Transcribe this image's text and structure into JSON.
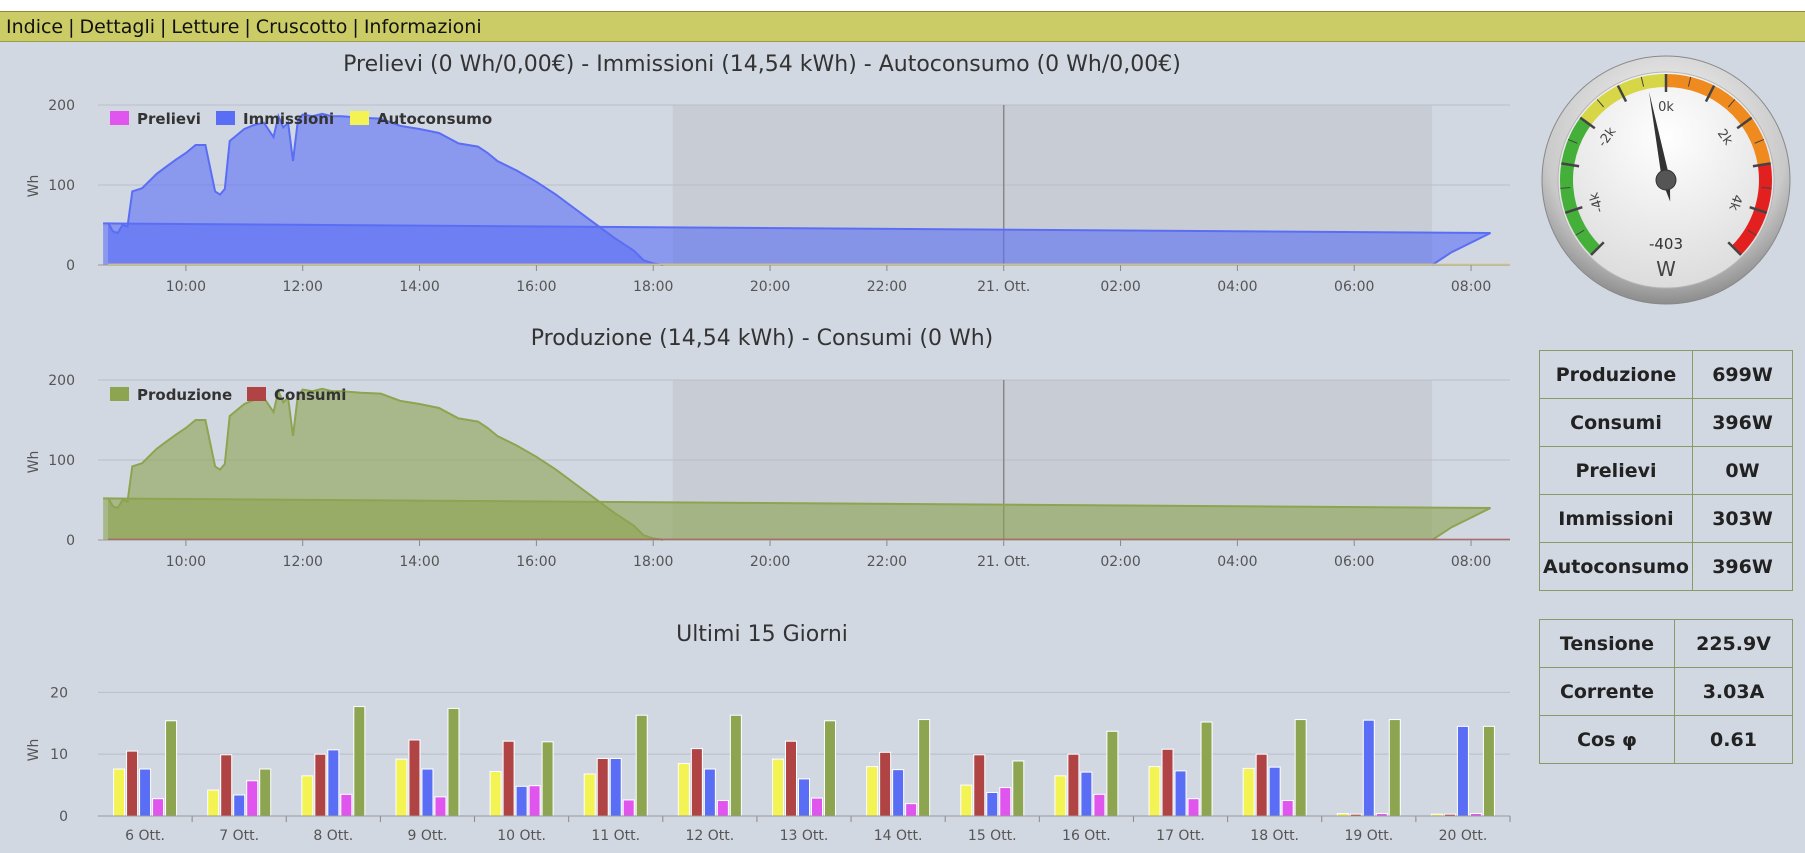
{
  "menu": [
    "Indice",
    "Dettagli",
    "Letture",
    "Cruscotto",
    "Informazioni"
  ],
  "chart_data": [
    {
      "type": "area",
      "title": "Prelievi (0 Wh/0,00€) - Immissioni (14,54 kWh) - Autoconsumo (0 Wh/0,00€)",
      "ylabel": "Wh",
      "ylim": [
        0,
        200
      ],
      "yticks": [
        0,
        100,
        200
      ],
      "xlim": [
        "20 Ott. 08:40",
        "21 Ott. 08:40"
      ],
      "xticks": [
        "10:00",
        "12:00",
        "14:00",
        "16:00",
        "18:00",
        "20:00",
        "22:00",
        "21. Ott.",
        "02:00",
        "04:00",
        "06:00",
        "08:00"
      ],
      "night_band": [
        "18:20",
        "07:20"
      ],
      "series": [
        {
          "name": "Prelievi",
          "color": "#e055ee",
          "values": []
        },
        {
          "name": "Immissioni",
          "color": "#5a6ef5",
          "x": [
            "08:40",
            "08:45",
            "08:50",
            "08:55",
            "09:00",
            "09:05",
            "09:10",
            "09:15",
            "09:20",
            "09:30",
            "09:40",
            "09:50",
            "10:00",
            "10:10",
            "10:20",
            "10:30",
            "10:35",
            "10:40",
            "10:45",
            "10:50",
            "10:55",
            "11:00",
            "11:10",
            "11:20",
            "11:30",
            "11:35",
            "11:40",
            "11:45",
            "11:50",
            "11:55",
            "12:00",
            "12:10",
            "12:20",
            "12:30",
            "12:40",
            "13:00",
            "13:20",
            "13:40",
            "14:00",
            "14:20",
            "14:40",
            "15:00",
            "15:10",
            "15:20",
            "15:40",
            "16:00",
            "16:20",
            "16:40",
            "17:00",
            "17:20",
            "17:40",
            "17:50",
            "18:00",
            "18:10",
            "07:20",
            "07:40",
            "08:00",
            "08:20",
            "08:35"
          ],
          "values": [
            53,
            42,
            40,
            50,
            48,
            92,
            94,
            96,
            102,
            114,
            123,
            132,
            140,
            150,
            150,
            92,
            88,
            95,
            155,
            160,
            165,
            170,
            175,
            178,
            160,
            186,
            172,
            178,
            130,
            181,
            188,
            186,
            189,
            186,
            186,
            184,
            183,
            174,
            170,
            165,
            152,
            148,
            140,
            130,
            118,
            104,
            88,
            70,
            52,
            34,
            18,
            6,
            2,
            0,
            0,
            16,
            28,
            40,
            52
          ]
        },
        {
          "name": "Autoconsumo",
          "color": "#f3f354",
          "values": []
        }
      ]
    },
    {
      "type": "area",
      "title": "Produzione (14,54 kWh) - Consumi (0 Wh)",
      "ylabel": "Wh",
      "ylim": [
        0,
        200
      ],
      "yticks": [
        0,
        100,
        200
      ],
      "xlim": [
        "20 Ott. 08:40",
        "21 Ott. 08:40"
      ],
      "xticks": [
        "10:00",
        "12:00",
        "14:00",
        "16:00",
        "18:00",
        "20:00",
        "22:00",
        "21. Ott.",
        "02:00",
        "04:00",
        "06:00",
        "08:00"
      ],
      "night_band": [
        "18:20",
        "07:20"
      ],
      "series": [
        {
          "name": "Produzione",
          "color": "#8da450",
          "x": [
            "08:40",
            "08:45",
            "08:50",
            "08:55",
            "09:00",
            "09:05",
            "09:10",
            "09:15",
            "09:20",
            "09:30",
            "09:40",
            "09:50",
            "10:00",
            "10:10",
            "10:20",
            "10:30",
            "10:35",
            "10:40",
            "10:45",
            "10:50",
            "10:55",
            "11:00",
            "11:10",
            "11:20",
            "11:30",
            "11:35",
            "11:40",
            "11:45",
            "11:50",
            "11:55",
            "12:00",
            "12:10",
            "12:20",
            "12:30",
            "12:40",
            "13:00",
            "13:20",
            "13:40",
            "14:00",
            "14:20",
            "14:40",
            "15:00",
            "15:10",
            "15:20",
            "15:40",
            "16:00",
            "16:20",
            "16:40",
            "17:00",
            "17:20",
            "17:40",
            "17:50",
            "18:00",
            "18:10",
            "07:20",
            "07:40",
            "08:00",
            "08:20",
            "08:35"
          ],
          "values": [
            53,
            42,
            40,
            50,
            48,
            92,
            94,
            96,
            102,
            114,
            123,
            132,
            140,
            150,
            150,
            92,
            88,
            95,
            155,
            160,
            165,
            170,
            175,
            178,
            160,
            186,
            172,
            178,
            130,
            181,
            188,
            186,
            189,
            186,
            186,
            184,
            183,
            174,
            170,
            165,
            152,
            148,
            140,
            130,
            118,
            104,
            88,
            70,
            52,
            34,
            18,
            6,
            2,
            0,
            0,
            16,
            28,
            40,
            52
          ]
        },
        {
          "name": "Consumi",
          "color": "#b04444",
          "values": [
            0
          ]
        }
      ]
    },
    {
      "type": "bar",
      "title": "Ultimi 15 Giorni",
      "ylabel": "Wh",
      "ylim": [
        0,
        22
      ],
      "yticks": [
        0,
        10,
        20
      ],
      "categories": [
        "6 Ott.",
        "7 Ott.",
        "8 Ott.",
        "9 Ott.",
        "10 Ott.",
        "11 Ott.",
        "12 Ott.",
        "13 Ott.",
        "14 Ott.",
        "15 Ott.",
        "16 Ott.",
        "17 Ott.",
        "18 Ott.",
        "19 Ott.",
        "20 Ott."
      ],
      "series": [
        {
          "name": "Autoconsumo",
          "color": "#f3f354",
          "values": [
            7.6,
            4.2,
            6.5,
            9.2,
            7.2,
            6.8,
            8.5,
            9.2,
            8.0,
            5.0,
            6.5,
            8.0,
            7.7,
            0.4,
            0.3
          ]
        },
        {
          "name": "Consumi",
          "color": "#b04444",
          "values": [
            10.5,
            9.9,
            10.0,
            12.3,
            12.1,
            9.3,
            10.9,
            12.1,
            10.3,
            9.9,
            10.0,
            10.8,
            10.0,
            0.3,
            0.3
          ]
        },
        {
          "name": "Immissioni",
          "color": "#5a6ef5",
          "values": [
            7.6,
            3.4,
            10.7,
            7.6,
            4.8,
            9.3,
            7.6,
            6.0,
            7.5,
            3.8,
            7.1,
            7.3,
            7.9,
            15.5,
            14.5
          ]
        },
        {
          "name": "Prelievi",
          "color": "#e055ee",
          "values": [
            2.8,
            5.7,
            3.5,
            3.1,
            4.9,
            2.6,
            2.5,
            2.9,
            2.0,
            4.6,
            3.5,
            2.8,
            2.5,
            0.4,
            0.4
          ]
        },
        {
          "name": "Produzione",
          "color": "#8da450",
          "values": [
            15.4,
            7.6,
            17.7,
            17.4,
            12.0,
            16.3,
            16.3,
            15.4,
            15.6,
            8.9,
            13.7,
            15.2,
            15.6,
            15.6,
            14.5
          ]
        }
      ]
    }
  ],
  "gauge": {
    "value": -403,
    "value_label": "-403",
    "unit": "W",
    "min": -5000,
    "max": 5000,
    "tick_labels": [
      "-4k",
      "-2k",
      "0k",
      "2k",
      "4k"
    ],
    "bands": {
      "green": "#44b03a",
      "yellow": "#d6d646",
      "orange": "#ef8a1e",
      "red": "#e22020"
    }
  },
  "power_table": [
    {
      "label": "Produzione",
      "value": "699W"
    },
    {
      "label": "Consumi",
      "value": "396W"
    },
    {
      "label": "Prelievi",
      "value": "0W"
    },
    {
      "label": "Immissioni",
      "value": "303W"
    },
    {
      "label": "Autoconsumo",
      "value": "396W"
    }
  ],
  "electric_table": [
    {
      "label": "Tensione",
      "value": "225.9V"
    },
    {
      "label": "Corrente",
      "value": "3.03A"
    },
    {
      "label": "Cos φ",
      "value": "0.61"
    }
  ]
}
